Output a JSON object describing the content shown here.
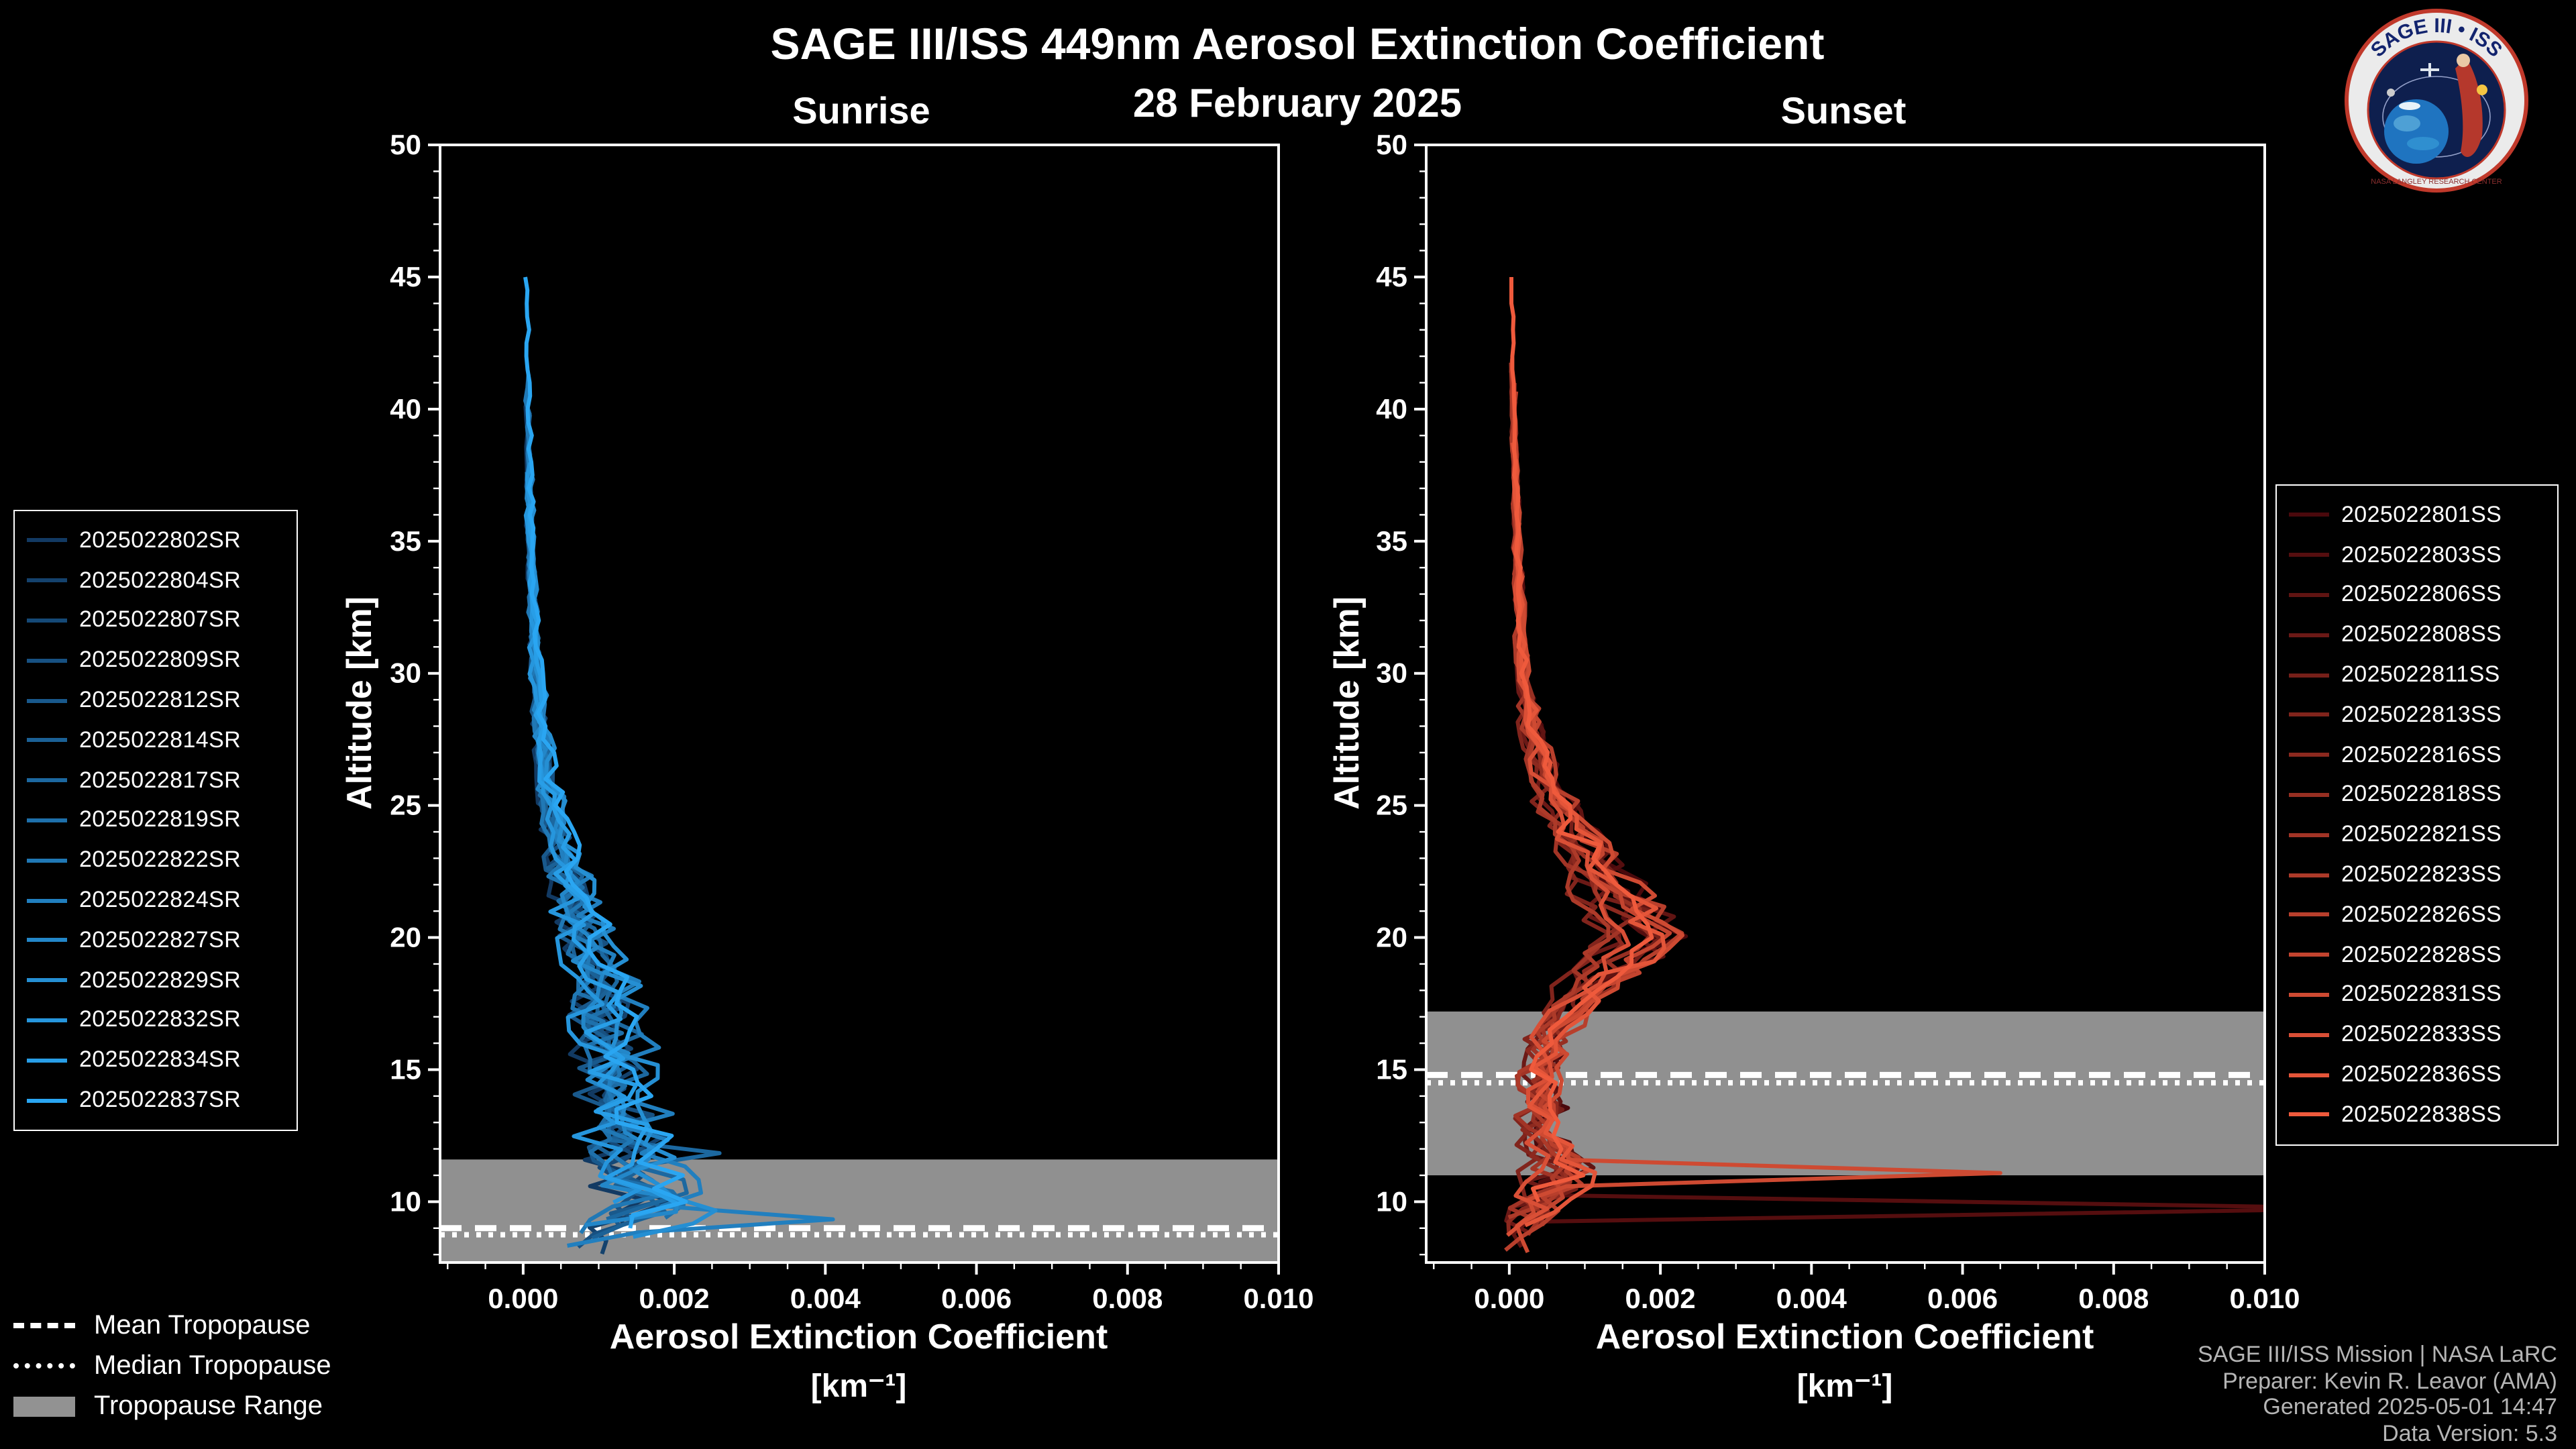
{
  "logo": {
    "title": "SAGE III • ISS",
    "ring_text": "NASA LANGLEY RESEARCH CENTER"
  },
  "tropopause_legend": {
    "items": [
      {
        "label": "Mean Tropopause",
        "style": "dashed"
      },
      {
        "label": "Median Tropopause",
        "style": "dotted"
      },
      {
        "label": "Tropopause Range",
        "style": "band"
      }
    ]
  },
  "footer": {
    "line1": "SAGE III/ISS Mission | NASA LaRC",
    "line2": "Preparer: Kevin R. Leavor (AMA)",
    "line3": "Generated 2025-05-01 14:47",
    "line4": "Data Version: 5.3"
  },
  "chart_data": {
    "type": "line",
    "title": "SAGE III/ISS 449nm Aerosol Extinction Coefficient",
    "subtitle": "28 February 2025",
    "xlabel": "Aerosol Extinction Coefficient",
    "xlabel_units": "[km⁻¹]",
    "ylabel": "Altitude [km]",
    "xlim": [
      -0.0011,
      0.01
    ],
    "ylim": [
      7.7,
      50
    ],
    "xticks": [
      0,
      0.002,
      0.004,
      0.006,
      0.008,
      0.01
    ],
    "yticks": [
      10,
      15,
      20,
      25,
      30,
      35,
      40,
      45,
      50
    ],
    "x_minor_step": 0.0005,
    "y_minor_step": 1,
    "grid": false,
    "background": "#000000",
    "panels": [
      {
        "title": "Sunrise",
        "legend_position": "outside-left",
        "series": [
          "2025022802SR",
          "2025022804SR",
          "2025022807SR",
          "2025022809SR",
          "2025022812SR",
          "2025022814SR",
          "2025022817SR",
          "2025022819SR",
          "2025022822SR",
          "2025022824SR",
          "2025022827SR",
          "2025022829SR",
          "2025022832SR",
          "2025022834SR",
          "2025022837SR"
        ],
        "colors": [
          "#123a63",
          "#14426d",
          "#154977",
          "#175182",
          "#19598c",
          "#1b6196",
          "#1c68a0",
          "#1e70ab",
          "#2078b5",
          "#217fbf",
          "#2387c9",
          "#258fd3",
          "#2696dd",
          "#289ee7",
          "#2aa6f2"
        ],
        "tropopause": {
          "mean": 9.0,
          "median": 8.75,
          "range": [
            7.0,
            11.6
          ]
        },
        "profile_control_points": [
          [
            45,
            4e-05,
            2e-05
          ],
          [
            40,
            7e-05,
            3e-05
          ],
          [
            35,
            0.0001,
            4e-05
          ],
          [
            30,
            0.00018,
            6e-05
          ],
          [
            27,
            0.00028,
            0.0001
          ],
          [
            25,
            0.0004,
            0.00013
          ],
          [
            23,
            0.00055,
            0.00018
          ],
          [
            21,
            0.00075,
            0.00022
          ],
          [
            20,
            0.0009,
            0.00025
          ],
          [
            18,
            0.0011,
            0.0003
          ],
          [
            16,
            0.00125,
            0.00035
          ],
          [
            14,
            0.0013,
            0.0004
          ],
          [
            12,
            0.0015,
            0.00045
          ],
          [
            11,
            0.0016,
            0.0005
          ],
          [
            10,
            0.00185,
            0.00055
          ],
          [
            9.5,
            0.0017,
            0.0006
          ],
          [
            9,
            0.0013,
            0.00055
          ],
          [
            8.5,
            0.0009,
            0.0006
          ],
          [
            8,
            0.0005,
            0.0009
          ]
        ],
        "outliers": [
          {
            "series": 6,
            "altitude": 11.6,
            "value": 0.0026
          },
          {
            "series": 9,
            "altitude": 9.4,
            "value": 0.0041
          }
        ]
      },
      {
        "title": "Sunset",
        "legend_position": "outside-right",
        "series": [
          "2025022801SS",
          "2025022803SS",
          "2025022806SS",
          "2025022808SS",
          "2025022811SS",
          "2025022813SS",
          "2025022816SS",
          "2025022818SS",
          "2025022821SS",
          "2025022823SS",
          "2025022826SS",
          "2025022828SS",
          "2025022831SS",
          "2025022833SS",
          "2025022836SS",
          "2025022838SS"
        ],
        "colors": [
          "#4a090c",
          "#550e0f",
          "#601412",
          "#6b1916",
          "#761f19",
          "#81241c",
          "#8c291f",
          "#972f22",
          "#a23426",
          "#ad3a29",
          "#b83f2c",
          "#c3442f",
          "#ce4a32",
          "#d94f36",
          "#e45539",
          "#ef5a3c"
        ],
        "tropopause": {
          "mean": 14.8,
          "median": 14.5,
          "range": [
            11.0,
            17.2
          ]
        },
        "profile_control_points": [
          [
            45,
            4e-05,
            2e-05
          ],
          [
            40,
            6e-05,
            2e-05
          ],
          [
            35,
            0.0001,
            3e-05
          ],
          [
            30,
            0.00018,
            6e-05
          ],
          [
            28,
            0.00028,
            0.0001
          ],
          [
            26,
            0.00048,
            0.00012
          ],
          [
            24,
            0.0008,
            0.0002
          ],
          [
            23,
            0.00105,
            0.00025
          ],
          [
            22,
            0.00125,
            0.00028
          ],
          [
            21,
            0.00148,
            0.0003
          ],
          [
            20,
            0.00165,
            0.0003
          ],
          [
            19,
            0.0014,
            0.0003
          ],
          [
            18,
            0.001,
            0.00025
          ],
          [
            17,
            0.0007,
            0.0002
          ],
          [
            16,
            0.0005,
            0.0002
          ],
          [
            15,
            0.0004,
            0.0002
          ],
          [
            14,
            0.00045,
            0.00025
          ],
          [
            13,
            0.0004,
            0.00025
          ],
          [
            12,
            0.0005,
            0.0003
          ],
          [
            11,
            0.0007,
            0.0004
          ],
          [
            10.5,
            0.0006,
            0.0004
          ],
          [
            10,
            0.0004,
            0.0003
          ],
          [
            9.5,
            0.0003,
            0.00028
          ],
          [
            9,
            0.0002,
            0.00025
          ],
          [
            8.5,
            0.00015,
            0.0002
          ],
          [
            8,
            0.0001,
            0.0005
          ]
        ],
        "outliers": [
          {
            "series": 1,
            "altitude": 9.9,
            "value": 0.0115
          },
          {
            "series": 12,
            "altitude": 11.2,
            "value": 0.0065
          }
        ]
      }
    ]
  }
}
